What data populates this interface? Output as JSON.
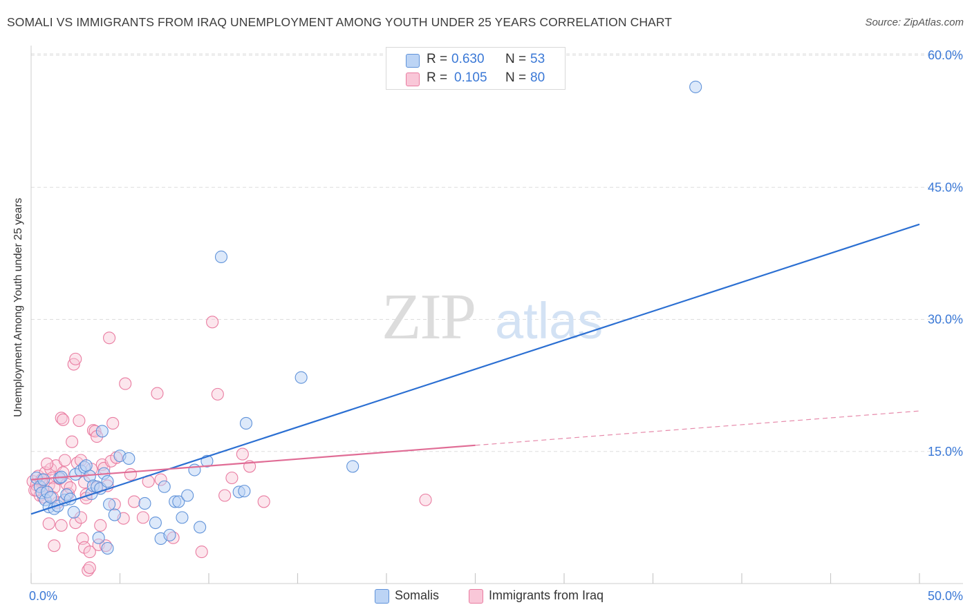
{
  "title": "SOMALI VS IMMIGRANTS FROM IRAQ UNEMPLOYMENT AMONG YOUTH UNDER 25 YEARS CORRELATION CHART",
  "source": "Source: ZipAtlas.com",
  "watermark": {
    "zip": "ZIP",
    "atlas": "atlas"
  },
  "legend_top": {
    "rows": [
      {
        "r_label": "R =",
        "r_value": "0.630",
        "n_label": "N =",
        "n_value": "53"
      },
      {
        "r_label": "R =",
        "r_value": "0.105",
        "n_label": "N =",
        "n_value": "80"
      }
    ]
  },
  "legend_bottom": {
    "items": [
      "Somalis",
      "Immigrants from Iraq"
    ]
  },
  "colors": {
    "blue_fill": "#bcd4f5",
    "blue_stroke": "#5f92d9",
    "blue_line": "#2b6fd2",
    "pink_fill": "#f9c7d8",
    "pink_stroke": "#e97ba0",
    "pink_line": "#e06c95",
    "axis_text": "#3a78d6",
    "grid": "#dddddd"
  },
  "chart_data": {
    "type": "scatter",
    "title": "SOMALI VS IMMIGRANTS FROM IRAQ UNEMPLOYMENT AMONG YOUTH UNDER 25 YEARS CORRELATION CHART",
    "xlabel": "",
    "ylabel": "Unemployment Among Youth under 25 years",
    "xlim": [
      0,
      50
    ],
    "ylim": [
      0,
      63
    ],
    "x_tick_labels": [
      "0.0%",
      "50.0%"
    ],
    "y_ticks": [
      15,
      30,
      45,
      60
    ],
    "y_tick_labels": [
      "15.0%",
      "30.0%",
      "45.0%",
      "60.0%"
    ],
    "series": [
      {
        "name": "Somalis",
        "r": 0.63,
        "n": 53,
        "trend": {
          "x0": 0,
          "y0": 7.9,
          "x1": 50,
          "y1": 40.8,
          "solid_to": 50
        },
        "points": [
          [
            0.3,
            12.0
          ],
          [
            0.5,
            11.0
          ],
          [
            0.6,
            10.3
          ],
          [
            0.7,
            11.8
          ],
          [
            0.8,
            9.5
          ],
          [
            0.9,
            10.4
          ],
          [
            1.0,
            8.7
          ],
          [
            1.1,
            9.8
          ],
          [
            1.3,
            8.5
          ],
          [
            1.5,
            8.8
          ],
          [
            1.6,
            12.0
          ],
          [
            1.7,
            12.1
          ],
          [
            1.9,
            9.5
          ],
          [
            2.0,
            10.1
          ],
          [
            2.2,
            9.6
          ],
          [
            2.4,
            8.1
          ],
          [
            2.5,
            12.4
          ],
          [
            2.8,
            12.8
          ],
          [
            3.0,
            13.2
          ],
          [
            3.1,
            13.4
          ],
          [
            3.3,
            12.2
          ],
          [
            3.4,
            10.2
          ],
          [
            3.5,
            11.1
          ],
          [
            3.7,
            11.0
          ],
          [
            3.9,
            10.8
          ],
          [
            4.1,
            12.5
          ],
          [
            4.3,
            11.6
          ],
          [
            4.4,
            9.0
          ],
          [
            4.7,
            7.8
          ],
          [
            5.0,
            14.5
          ],
          [
            5.5,
            14.2
          ],
          [
            6.4,
            9.1
          ],
          [
            7.0,
            6.9
          ],
          [
            7.3,
            5.1
          ],
          [
            7.5,
            11.0
          ],
          [
            7.8,
            5.5
          ],
          [
            8.1,
            9.3
          ],
          [
            8.3,
            9.3
          ],
          [
            8.5,
            7.5
          ],
          [
            8.8,
            10.0
          ],
          [
            9.2,
            12.9
          ],
          [
            9.5,
            6.4
          ],
          [
            9.9,
            13.9
          ],
          [
            10.7,
            37.1
          ],
          [
            11.7,
            10.4
          ],
          [
            12.0,
            10.5
          ],
          [
            12.1,
            18.2
          ],
          [
            15.2,
            23.4
          ],
          [
            18.1,
            13.3
          ],
          [
            37.4,
            56.4
          ],
          [
            3.8,
            5.2
          ],
          [
            4.0,
            17.3
          ],
          [
            4.3,
            4.0
          ]
        ]
      },
      {
        "name": "Immigrants from Iraq",
        "r": 0.105,
        "n": 80,
        "trend": {
          "x0": 0,
          "y0": 11.8,
          "x1": 50,
          "y1": 19.6,
          "solid_to": 25
        },
        "points": [
          [
            0.1,
            11.6
          ],
          [
            0.2,
            10.6
          ],
          [
            0.3,
            11.2
          ],
          [
            0.4,
            12.2
          ],
          [
            0.5,
            10.0
          ],
          [
            0.6,
            11.5
          ],
          [
            0.7,
            9.8
          ],
          [
            0.8,
            12.6
          ],
          [
            0.9,
            10.4
          ],
          [
            1.0,
            11.2
          ],
          [
            1.1,
            13.0
          ],
          [
            1.2,
            12.0
          ],
          [
            1.3,
            10.9
          ],
          [
            1.4,
            13.4
          ],
          [
            1.5,
            9.2
          ],
          [
            1.6,
            11.9
          ],
          [
            1.7,
            6.6
          ],
          [
            1.8,
            12.6
          ],
          [
            1.9,
            14.0
          ],
          [
            2.0,
            11.3
          ],
          [
            2.1,
            10.2
          ],
          [
            2.2,
            10.9
          ],
          [
            2.3,
            16.1
          ],
          [
            2.4,
            24.9
          ],
          [
            2.5,
            25.5
          ],
          [
            2.6,
            13.7
          ],
          [
            2.7,
            18.5
          ],
          [
            2.8,
            14.0
          ],
          [
            2.9,
            5.1
          ],
          [
            3.0,
            4.1
          ],
          [
            3.1,
            10.1
          ],
          [
            3.2,
            1.5
          ],
          [
            3.3,
            3.6
          ],
          [
            3.4,
            13.0
          ],
          [
            3.5,
            17.4
          ],
          [
            3.6,
            17.3
          ],
          [
            3.7,
            16.7
          ],
          [
            3.8,
            4.4
          ],
          [
            3.9,
            6.6
          ],
          [
            4.0,
            13.5
          ],
          [
            4.1,
            13.1
          ],
          [
            4.2,
            4.3
          ],
          [
            4.3,
            11.1
          ],
          [
            4.4,
            27.9
          ],
          [
            4.5,
            13.9
          ],
          [
            4.6,
            18.2
          ],
          [
            4.7,
            9.0
          ],
          [
            5.3,
            22.7
          ],
          [
            5.6,
            12.4
          ],
          [
            6.6,
            11.6
          ],
          [
            7.1,
            21.6
          ],
          [
            7.3,
            11.8
          ],
          [
            8.0,
            5.2
          ],
          [
            9.6,
            3.6
          ],
          [
            10.2,
            29.7
          ],
          [
            10.5,
            21.5
          ],
          [
            10.9,
            10.0
          ],
          [
            11.3,
            12.0
          ],
          [
            11.9,
            14.7
          ],
          [
            12.3,
            13.3
          ],
          [
            13.1,
            9.3
          ],
          [
            22.2,
            9.5
          ],
          [
            0.3,
            10.6
          ],
          [
            0.6,
            11.8
          ],
          [
            1.2,
            9.8
          ],
          [
            1.3,
            4.3
          ],
          [
            1.7,
            18.8
          ],
          [
            1.8,
            18.6
          ],
          [
            2.5,
            6.9
          ],
          [
            2.8,
            7.5
          ],
          [
            3.0,
            11.5
          ],
          [
            3.1,
            9.7
          ],
          [
            3.3,
            1.8
          ],
          [
            3.7,
            10.9
          ],
          [
            4.8,
            14.3
          ],
          [
            5.2,
            7.4
          ],
          [
            5.8,
            9.3
          ],
          [
            6.3,
            7.5
          ],
          [
            0.9,
            13.6
          ],
          [
            1.0,
            6.8
          ]
        ]
      }
    ]
  }
}
